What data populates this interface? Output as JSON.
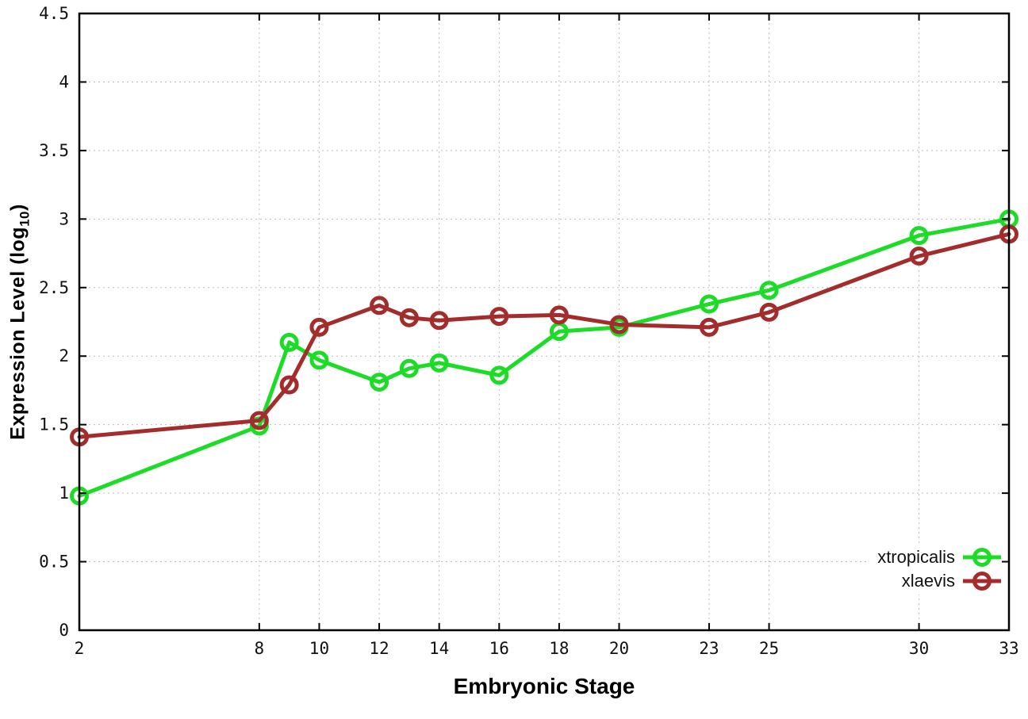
{
  "chart_data": {
    "type": "line",
    "title": "",
    "xlabel": "Embryonic Stage",
    "ylabel": {
      "prefix": "Expression Level (log",
      "sub": "10",
      "suffix": ")"
    },
    "xlim": [
      2,
      33
    ],
    "ylim": [
      0,
      4.5
    ],
    "grid": true,
    "legend_position": "bottom-right",
    "marker_style": "open-circle",
    "x_ticks": [
      2,
      8,
      10,
      12,
      14,
      16,
      18,
      20,
      23,
      25,
      30,
      33
    ],
    "y_ticks": [
      "0",
      "0.5",
      "1",
      "1.5",
      "2",
      "2.5",
      "3",
      "3.5",
      "4",
      "4.5"
    ],
    "x": [
      2,
      8,
      9,
      10,
      12,
      13,
      14,
      16,
      18,
      20,
      23,
      25,
      30,
      33
    ],
    "series": [
      {
        "name": "xtropicalis",
        "color": "#1DDC28",
        "values": [
          0.98,
          1.49,
          2.1,
          1.97,
          1.81,
          1.91,
          1.95,
          1.86,
          2.18,
          2.21,
          2.38,
          2.48,
          2.88,
          3.0
        ]
      },
      {
        "name": "xlaevis",
        "color": "#A32C2C",
        "values": [
          1.41,
          1.53,
          1.79,
          2.21,
          2.37,
          2.28,
          2.26,
          2.29,
          2.3,
          2.23,
          2.21,
          2.32,
          2.73,
          2.89
        ]
      }
    ],
    "colors": {
      "grid": "#bdbdbd",
      "border": "#000000",
      "tick_text": "#111111",
      "background": "#ffffff"
    }
  }
}
